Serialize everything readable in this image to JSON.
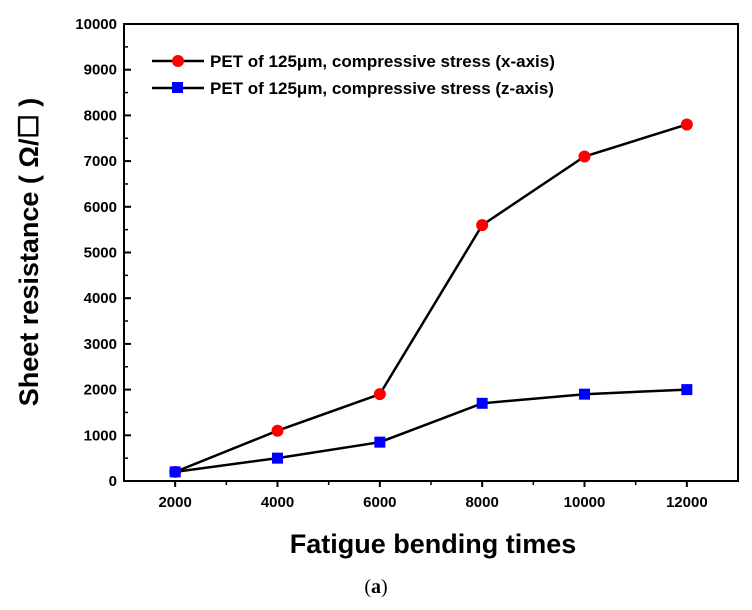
{
  "chart_data": {
    "type": "line",
    "title": "",
    "xlabel": "Fatigue bending times",
    "ylabel": "Sheet resistance ( Ω/☐ )",
    "xlim": [
      1000,
      13000
    ],
    "ylim": [
      0,
      10000
    ],
    "x_ticks": [
      2000,
      4000,
      6000,
      8000,
      10000,
      12000
    ],
    "y_ticks": [
      0,
      1000,
      2000,
      3000,
      4000,
      5000,
      6000,
      7000,
      8000,
      9000,
      10000
    ],
    "legend_position": "top-left",
    "series": [
      {
        "name": "PET of 125μm, compressive stress (x-axis)",
        "marker": "circle",
        "color": "#ff0000",
        "x": [
          2000,
          4000,
          6000,
          8000,
          10000,
          12000
        ],
        "values": [
          200,
          1100,
          1900,
          5600,
          7100,
          7800
        ]
      },
      {
        "name": "PET of 125μm, compressive stress (z-axis)",
        "marker": "square",
        "color": "#0000ff",
        "x": [
          2000,
          4000,
          6000,
          8000,
          10000,
          12000
        ],
        "values": [
          200,
          500,
          850,
          1700,
          1900,
          2000
        ]
      }
    ]
  },
  "caption": {
    "open": "(",
    "letter": "a",
    "close": ")"
  }
}
